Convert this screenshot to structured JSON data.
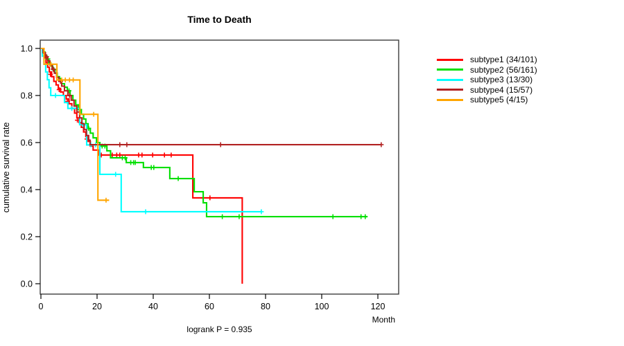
{
  "title": "Time to Death",
  "footnote": "logrank P = 0.935",
  "axes": {
    "xlabel": "Month",
    "ylabel": "cumulative survival rate"
  },
  "chart_data": {
    "type": "line",
    "variant": "kaplan-meier-step",
    "title": "Time to Death",
    "xlabel": "Month",
    "ylabel": "cumulative survival rate",
    "annotation": "logrank P = 0.935",
    "xlim": [
      0,
      127.5
    ],
    "ylim": [
      0.0,
      1.0
    ],
    "xticks": [
      0,
      20,
      40,
      60,
      80,
      100,
      120
    ],
    "yticks": [
      "0.0",
      "0.2",
      "0.4",
      "0.6",
      "0.8",
      "1.0"
    ],
    "grid": false,
    "legend_position": "right",
    "series": [
      {
        "name": "subtype1 (34/101)",
        "color": "#FF0000",
        "points": [
          [
            0,
            1.0
          ],
          [
            0.6,
            0.98
          ],
          [
            1.2,
            0.96
          ],
          [
            1.8,
            0.94
          ],
          [
            2.4,
            0.92
          ],
          [
            3.0,
            0.9
          ],
          [
            3.8,
            0.88
          ],
          [
            4.6,
            0.86
          ],
          [
            5.4,
            0.845
          ],
          [
            6.2,
            0.83
          ],
          [
            7.0,
            0.815
          ],
          [
            8.0,
            0.8
          ],
          [
            9.0,
            0.785
          ],
          [
            10.0,
            0.765
          ],
          [
            11.0,
            0.745
          ],
          [
            12.0,
            0.725
          ],
          [
            12.8,
            0.705
          ],
          [
            13.6,
            0.685
          ],
          [
            14.4,
            0.665
          ],
          [
            15.2,
            0.645
          ],
          [
            16.0,
            0.625
          ],
          [
            16.8,
            0.605
          ],
          [
            17.6,
            0.585
          ],
          [
            18.6,
            0.568
          ],
          [
            20.5,
            0.547
          ],
          [
            54.1,
            0.365
          ],
          [
            71.7,
            0.0
          ]
        ],
        "censors": [
          [
            3.4,
            0.89
          ],
          [
            6.5,
            0.825
          ],
          [
            9.5,
            0.775
          ],
          [
            13.0,
            0.695
          ],
          [
            16.4,
            0.615
          ],
          [
            21.5,
            0.547
          ],
          [
            25.4,
            0.547
          ],
          [
            27.0,
            0.547
          ],
          [
            28.1,
            0.547
          ],
          [
            34.8,
            0.547
          ],
          [
            36.0,
            0.547
          ],
          [
            39.8,
            0.547
          ],
          [
            44.0,
            0.547
          ],
          [
            46.4,
            0.547
          ],
          [
            60.2,
            0.365
          ]
        ]
      },
      {
        "name": "subtype2 (56/161)",
        "color": "#00DF00",
        "points": [
          [
            0,
            1.0
          ],
          [
            0.7,
            0.985
          ],
          [
            1.4,
            0.97
          ],
          [
            2.1,
            0.955
          ],
          [
            2.8,
            0.94
          ],
          [
            3.5,
            0.925
          ],
          [
            4.2,
            0.91
          ],
          [
            5.0,
            0.895
          ],
          [
            5.8,
            0.88
          ],
          [
            6.6,
            0.865
          ],
          [
            7.4,
            0.85
          ],
          [
            8.4,
            0.835
          ],
          [
            9.4,
            0.82
          ],
          [
            10.4,
            0.8
          ],
          [
            11.4,
            0.78
          ],
          [
            12.4,
            0.76
          ],
          [
            13.4,
            0.74
          ],
          [
            14.4,
            0.72
          ],
          [
            15.2,
            0.7
          ],
          [
            16.0,
            0.68
          ],
          [
            16.8,
            0.66
          ],
          [
            17.6,
            0.64
          ],
          [
            18.6,
            0.62
          ],
          [
            19.8,
            0.6
          ],
          [
            21.0,
            0.585
          ],
          [
            23.5,
            0.565
          ],
          [
            24.8,
            0.535
          ],
          [
            30.4,
            0.515
          ],
          [
            36.5,
            0.494
          ],
          [
            45.9,
            0.447
          ],
          [
            54.6,
            0.391
          ],
          [
            57.8,
            0.344
          ],
          [
            59.0,
            0.285
          ],
          [
            116.3,
            0.285
          ]
        ],
        "censors": [
          [
            2.5,
            0.955
          ],
          [
            4.6,
            0.91
          ],
          [
            7.0,
            0.865
          ],
          [
            10.0,
            0.82
          ],
          [
            13.8,
            0.74
          ],
          [
            17.0,
            0.66
          ],
          [
            21.8,
            0.585
          ],
          [
            22.8,
            0.585
          ],
          [
            29.0,
            0.535
          ],
          [
            30.0,
            0.535
          ],
          [
            32.0,
            0.515
          ],
          [
            33.0,
            0.515
          ],
          [
            33.6,
            0.515
          ],
          [
            39.3,
            0.494
          ],
          [
            40.2,
            0.494
          ],
          [
            48.9,
            0.447
          ],
          [
            64.6,
            0.285
          ],
          [
            70.6,
            0.285
          ],
          [
            104.0,
            0.285
          ],
          [
            114.0,
            0.285
          ],
          [
            115.5,
            0.285
          ]
        ]
      },
      {
        "name": "subtype3 (13/30)",
        "color": "#00FFFF",
        "points": [
          [
            0,
            1.0
          ],
          [
            0.5,
            0.967
          ],
          [
            1.1,
            0.933
          ],
          [
            1.7,
            0.9
          ],
          [
            2.3,
            0.867
          ],
          [
            2.9,
            0.833
          ],
          [
            3.5,
            0.8
          ],
          [
            8.4,
            0.77
          ],
          [
            9.6,
            0.745
          ],
          [
            13.8,
            0.676
          ],
          [
            16.3,
            0.59
          ],
          [
            21.0,
            0.465
          ],
          [
            28.6,
            0.306
          ],
          [
            78.5,
            0.306
          ]
        ],
        "censors": [
          [
            5.2,
            0.8
          ],
          [
            11.0,
            0.745
          ],
          [
            15.0,
            0.676
          ],
          [
            17.8,
            0.59
          ],
          [
            19.5,
            0.59
          ],
          [
            26.6,
            0.465
          ],
          [
            37.3,
            0.306
          ],
          [
            78.5,
            0.306
          ]
        ]
      },
      {
        "name": "subtype4 (15/57)",
        "color": "#B22222",
        "points": [
          [
            0,
            1.0
          ],
          [
            0.8,
            0.982
          ],
          [
            1.6,
            0.965
          ],
          [
            2.4,
            0.947
          ],
          [
            3.2,
            0.93
          ],
          [
            4.0,
            0.912
          ],
          [
            4.8,
            0.895
          ],
          [
            5.6,
            0.877
          ],
          [
            6.4,
            0.86
          ],
          [
            7.4,
            0.84
          ],
          [
            8.4,
            0.82
          ],
          [
            9.6,
            0.8
          ],
          [
            10.8,
            0.78
          ],
          [
            11.8,
            0.755
          ],
          [
            12.8,
            0.73
          ],
          [
            13.8,
            0.705
          ],
          [
            14.6,
            0.68
          ],
          [
            15.4,
            0.655
          ],
          [
            16.2,
            0.63
          ],
          [
            17.0,
            0.61
          ],
          [
            17.5,
            0.591
          ],
          [
            121.2,
            0.591
          ]
        ],
        "censors": [
          [
            2.0,
            0.965
          ],
          [
            4.4,
            0.912
          ],
          [
            7.0,
            0.86
          ],
          [
            10.2,
            0.8
          ],
          [
            28.1,
            0.591
          ],
          [
            30.6,
            0.591
          ],
          [
            64.0,
            0.591
          ],
          [
            121.2,
            0.591
          ]
        ]
      },
      {
        "name": "subtype5 (4/15)",
        "color": "#FFA500",
        "points": [
          [
            0,
            1.0
          ],
          [
            1.1,
            0.933
          ],
          [
            5.7,
            0.866
          ],
          [
            13.9,
            0.72
          ],
          [
            20.3,
            0.355
          ],
          [
            24.3,
            0.355
          ]
        ],
        "censors": [
          [
            3.5,
            0.933
          ],
          [
            7.4,
            0.866
          ],
          [
            8.7,
            0.866
          ],
          [
            10.2,
            0.866
          ],
          [
            11.5,
            0.866
          ],
          [
            18.8,
            0.72
          ],
          [
            23.2,
            0.355
          ]
        ]
      }
    ]
  }
}
